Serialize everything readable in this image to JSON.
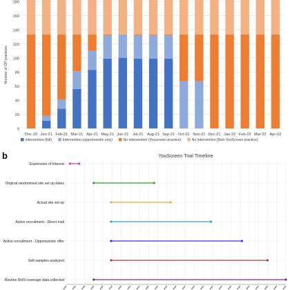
{
  "panel_b_label": "b",
  "colors": {
    "intervention_full": "#4472c4",
    "intervention_opportunistic": "#8faadc",
    "no_intervention_youscreen": "#ed7d31",
    "no_intervention_non_youscreen": "#f4b183",
    "gridline": "#d9d9d9",
    "timeline_grid": "#ececec",
    "axis_text": "#404040"
  },
  "chart_data": [
    {
      "type": "bar",
      "stacked": true,
      "title": "",
      "xlabel": "",
      "ylabel": "Number of GP practices",
      "ylim": [
        0,
        180
      ],
      "yticks": [
        0,
        20,
        40,
        60,
        80,
        100,
        120,
        140,
        160,
        180
      ],
      "grid": true,
      "legend_position": "bottom",
      "categories": [
        "Dec-20",
        "Jan-21",
        "Feb-21",
        "Mar-21",
        "Apr-21",
        "May-21",
        "Jun-21",
        "Jul-21",
        "Aug-21",
        "Sep-21",
        "Oct-21",
        "Nov-21",
        "Dec-21",
        "Jan-22",
        "Feb-22",
        "Mar-22",
        "Apr-22"
      ],
      "series": [
        {
          "name": "Intervention (full)",
          "color_key": "intervention_full",
          "values": [
            0,
            11,
            28,
            56,
            83,
            99,
            100,
            99,
            99,
            99,
            0,
            0,
            0,
            0,
            0,
            0,
            0
          ]
        },
        {
          "name": "Intervention (opportunistic only)",
          "color_key": "intervention_opportunistic",
          "values": [
            0,
            7,
            13,
            25,
            27,
            33,
            33,
            33,
            33,
            33,
            67,
            67,
            0,
            0,
            0,
            0,
            0
          ]
        },
        {
          "name": "No intervention (Youscreen practice)",
          "color_key": "no_intervention_youscreen",
          "values": [
            133,
            115,
            92,
            52,
            23,
            1,
            0,
            1,
            1,
            1,
            66,
            66,
            133,
            133,
            133,
            133,
            133
          ]
        },
        {
          "name": "No intervention (Non-YouScreen practice)",
          "color_key": "no_intervention_non_youscreen",
          "values": [
            50,
            50,
            50,
            50,
            50,
            50,
            50,
            50,
            50,
            50,
            50,
            50,
            50,
            50,
            50,
            50,
            50
          ]
        }
      ]
    },
    {
      "type": "timeline",
      "title": "YouScreen Trial Timeline",
      "grid": true,
      "tasks": [
        {
          "label": "Expression of Interest",
          "start": 0.4,
          "end": 1.4,
          "color": "#d63fb8"
        },
        {
          "label": "Original randomised site set up dates",
          "start": 3.0,
          "end": 9.6,
          "color": "#2ca02c"
        },
        {
          "label": "Actual site set up",
          "start": 4.9,
          "end": 11.4,
          "color": "#f2a33a"
        },
        {
          "label": "Active recruitment - Direct mail",
          "start": 4.9,
          "end": 15.8,
          "color": "#2e9fd8"
        },
        {
          "label": "Active recruitment - Opportunistic offer",
          "start": 4.9,
          "end": 19.2,
          "color": "#4b2bd6"
        },
        {
          "label": "Self-samples analysed",
          "start": 4.9,
          "end": 22.0,
          "color": "#b03a3a"
        },
        {
          "label": "Routine NHS coverage data collected",
          "start": 3.0,
          "end": 24.0,
          "color": "#7a2a8a"
        }
      ],
      "axis_tick_count": 25
    }
  ]
}
